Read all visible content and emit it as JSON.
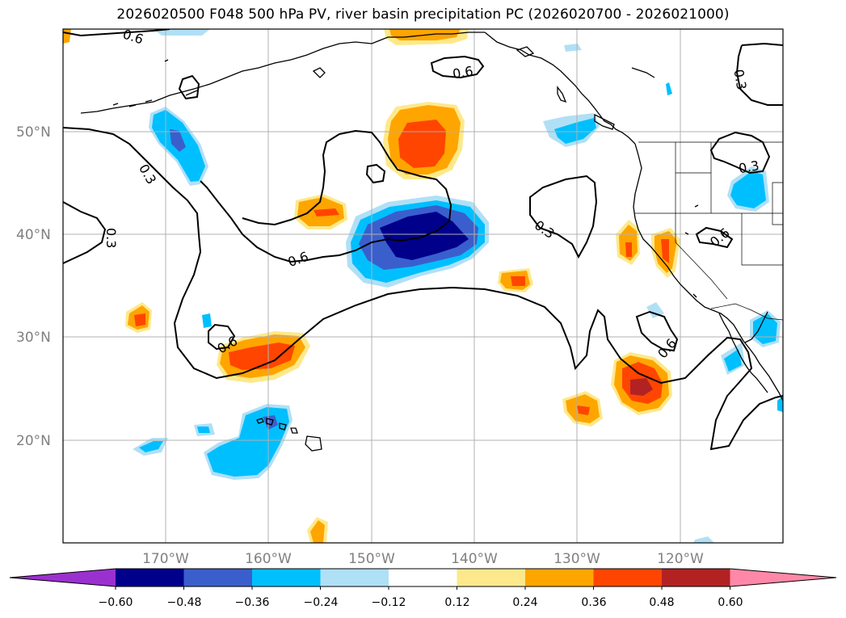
{
  "title": "2026020500 F048 500 hPa PV, river basin precipitation PC (2026020700 - 2026021000)",
  "map": {
    "projection": "PlateCarree",
    "extent": {
      "lon_min": -180,
      "lon_max": -110,
      "lat_min": 10,
      "lat_max": 60
    },
    "lat_ticks": [
      {
        "lat": 50,
        "label": "50°N"
      },
      {
        "lat": 40,
        "label": "40°N"
      },
      {
        "lat": 30,
        "label": "30°N"
      },
      {
        "lat": 20,
        "label": "20°N"
      }
    ],
    "lon_ticks": [
      {
        "lon": -170,
        "label": "170°W"
      },
      {
        "lon": -160,
        "label": "160°W"
      },
      {
        "lon": -150,
        "label": "150°W"
      },
      {
        "lon": -140,
        "label": "140°W"
      },
      {
        "lon": -130,
        "label": "130°W"
      },
      {
        "lon": -120,
        "label": "120°W"
      }
    ],
    "grid": true,
    "contour_labels": [
      "0.6",
      "0.3"
    ]
  },
  "colorbar": {
    "levels": [
      "−0.60",
      "−0.48",
      "−0.36",
      "−0.24",
      "−0.12",
      "0.12",
      "0.24",
      "0.36",
      "0.48",
      "0.60"
    ],
    "colors": [
      "#9b30d0",
      "#00008b",
      "#3a5fcd",
      "#00bfff",
      "#b0e0f6",
      "#ffffff",
      "#fde98b",
      "#ffa500",
      "#ff4500",
      "#b22222",
      "#ff88a8"
    ],
    "extend": "both"
  },
  "colors": {
    "dark_blue": "#00008b",
    "mid_blue": "#3a5fcd",
    "deep_sky": "#00bfff",
    "light_blue": "#b0e0f6",
    "light_yellow": "#fde98b",
    "orange": "#ffa500",
    "orange_red": "#ff4500",
    "firebrick": "#b22222"
  }
}
